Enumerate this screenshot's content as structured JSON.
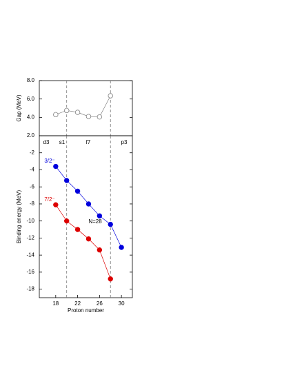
{
  "chart_data": [
    {
      "type": "line",
      "ylabel": "Gap (MeV)",
      "x": [
        18,
        20,
        22,
        24,
        26,
        28
      ],
      "series": [
        {
          "color": "#808080",
          "values": [
            4.3,
            4.75,
            4.55,
            4.1,
            4.05,
            6.35
          ]
        }
      ],
      "xlim": [
        15,
        32
      ],
      "ylim": [
        2,
        8
      ],
      "yticks": [
        {
          "value": 2,
          "label": "2.0"
        },
        {
          "value": 4,
          "label": "4.0"
        },
        {
          "value": 6,
          "label": "6.0"
        },
        {
          "value": 8,
          "label": "8.0"
        }
      ],
      "vlines": [
        20,
        28
      ]
    },
    {
      "type": "line",
      "ylabel": "Binding energy (MeV)",
      "xlabel": "Proton number",
      "series": [
        {
          "name": "3/2⁻",
          "color": "#0000dd",
          "x": [
            18,
            20,
            22,
            24,
            26,
            28,
            30
          ],
          "values": [
            -3.6,
            -5.25,
            -6.5,
            -8.0,
            -9.4,
            -10.4,
            -13.1
          ]
        },
        {
          "name": "7/2⁻",
          "color": "#dd0000",
          "x": [
            18,
            20,
            22,
            24,
            26,
            28
          ],
          "values": [
            -8.1,
            -10.0,
            -11.0,
            -12.1,
            -13.4,
            -16.8
          ]
        }
      ],
      "xlim": [
        15,
        32
      ],
      "ylim": [
        -19,
        0
      ],
      "xticks": [
        18,
        22,
        26,
        30
      ],
      "yticks": [
        -18,
        -16,
        -14,
        -12,
        -10,
        -8,
        -6,
        -4,
        -2
      ],
      "vlines": [
        20,
        28
      ],
      "annotations": [
        "d3",
        "s1",
        "f7",
        "p3",
        "N=28"
      ]
    }
  ]
}
